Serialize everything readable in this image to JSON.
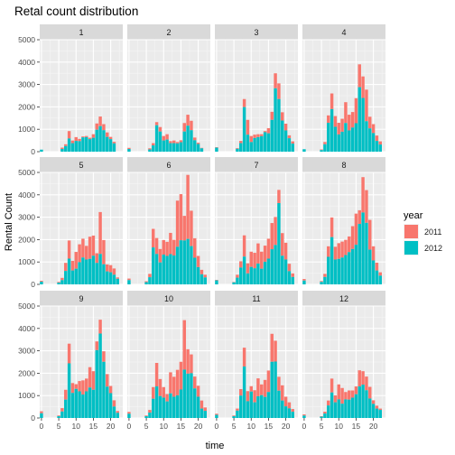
{
  "chart_data": {
    "type": "bar",
    "stacked": true,
    "facet": "month",
    "title": "Retal count distribution",
    "xlabel": "time",
    "ylabel": "Rental Count",
    "ylim": [
      0,
      5000
    ],
    "xlim": [
      -0.5,
      23.5
    ],
    "y_ticks": [
      0,
      1000,
      2000,
      3000,
      4000,
      5000
    ],
    "x_ticks": [
      0,
      5,
      10,
      15,
      20
    ],
    "grid": true,
    "legend": {
      "title": "year",
      "position": "right",
      "items": [
        {
          "label": "2011",
          "color": "#F8766D"
        },
        {
          "label": "2012",
          "color": "#00BFC4"
        }
      ]
    },
    "x": [
      0,
      1,
      2,
      3,
      4,
      5,
      6,
      7,
      8,
      9,
      10,
      11,
      12,
      13,
      14,
      15,
      16,
      17,
      18,
      19,
      20,
      21,
      22,
      23
    ],
    "panels": [
      {
        "label": "1",
        "y2012": [
          90,
          0,
          0,
          0,
          0,
          0,
          120,
          250,
          590,
          380,
          480,
          470,
          640,
          650,
          560,
          620,
          980,
          1140,
          960,
          660,
          560,
          370,
          0,
          0
        ],
        "total": [
          90,
          0,
          0,
          0,
          0,
          0,
          180,
          330,
          920,
          500,
          650,
          570,
          680,
          700,
          620,
          780,
          1260,
          1570,
          1230,
          860,
          660,
          440,
          0,
          0
        ]
      },
      {
        "label": "2",
        "y2012": [
          120,
          0,
          0,
          0,
          0,
          0,
          100,
          280,
          1180,
          900,
          500,
          540,
          380,
          380,
          370,
          420,
          900,
          1160,
          960,
          510,
          340,
          150,
          0,
          0
        ],
        "total": [
          170,
          0,
          0,
          0,
          0,
          0,
          150,
          380,
          1320,
          1100,
          700,
          780,
          470,
          500,
          430,
          510,
          1280,
          1650,
          1380,
          630,
          400,
          170,
          0,
          0
        ]
      },
      {
        "label": "3",
        "y2012": [
          180,
          0,
          0,
          0,
          0,
          0,
          130,
          380,
          1990,
          760,
          430,
          610,
          650,
          690,
          870,
          820,
          1420,
          2830,
          2350,
          1390,
          950,
          600,
          360,
          0
        ],
        "total": [
          200,
          0,
          0,
          0,
          0,
          0,
          160,
          480,
          2350,
          1420,
          700,
          760,
          780,
          780,
          920,
          1050,
          1780,
          3500,
          3050,
          1760,
          1250,
          730,
          460,
          0
        ]
      },
      {
        "label": "4",
        "y2012": [
          110,
          0,
          0,
          0,
          0,
          70,
          330,
          1290,
          1900,
          1110,
          770,
          890,
          1280,
          950,
          1080,
          1270,
          2880,
          2400,
          1360,
          1040,
          830,
          480,
          320,
          0
        ],
        "total": [
          110,
          0,
          0,
          0,
          0,
          100,
          430,
          1620,
          2600,
          1590,
          1290,
          1470,
          2210,
          1650,
          1770,
          2390,
          3900,
          3360,
          2770,
          1560,
          1230,
          720,
          460,
          0
        ]
      }
    ],
    "panels_row2": [
      {
        "label": "5",
        "y2012": [
          120,
          0,
          0,
          0,
          0,
          80,
          190,
          600,
          1150,
          620,
          700,
          990,
          1200,
          1110,
          1140,
          1280,
          960,
          1360,
          900,
          580,
          540,
          430,
          250,
          0
        ],
        "total": [
          160,
          0,
          0,
          0,
          0,
          110,
          290,
          960,
          1960,
          1050,
          1450,
          1790,
          2040,
          1720,
          2130,
          2180,
          1390,
          3230,
          1980,
          890,
          860,
          710,
          310,
          0
        ]
      },
      {
        "label": "6",
        "y2012": [
          190,
          0,
          0,
          0,
          0,
          100,
          320,
          1650,
          1360,
          980,
          1330,
          1270,
          1350,
          1290,
          1680,
          1970,
          1960,
          2030,
          1710,
          1190,
          770,
          450,
          310,
          0
        ],
        "total": [
          260,
          0,
          0,
          0,
          0,
          140,
          470,
          2480,
          2070,
          1580,
          1980,
          1900,
          2300,
          1990,
          3740,
          4030,
          3060,
          4890,
          3290,
          2060,
          1270,
          650,
          430,
          0
        ]
      },
      {
        "label": "7",
        "y2012": [
          180,
          0,
          0,
          0,
          0,
          90,
          300,
          750,
          1240,
          490,
          780,
          720,
          930,
          700,
          1010,
          1150,
          1570,
          1760,
          3630,
          1280,
          1110,
          590,
          330,
          0
        ],
        "total": [
          200,
          0,
          0,
          0,
          0,
          110,
          430,
          1030,
          2190,
          940,
          1460,
          1410,
          1830,
          1460,
          1730,
          2040,
          2740,
          3010,
          4220,
          2290,
          1860,
          920,
          490,
          0
        ]
      },
      {
        "label": "8",
        "y2012": [
          170,
          0,
          0,
          0,
          0,
          110,
          330,
          1230,
          2110,
          1110,
          1140,
          1200,
          1310,
          1440,
          1580,
          1770,
          2700,
          3210,
          2750,
          1550,
          1070,
          620,
          390,
          0
        ],
        "total": [
          240,
          0,
          0,
          0,
          0,
          150,
          470,
          1700,
          2990,
          1680,
          1840,
          1910,
          1990,
          2140,
          2600,
          3160,
          3310,
          4790,
          4210,
          2880,
          1700,
          970,
          540,
          0
        ]
      }
    ],
    "panels_row3": [
      {
        "label": "9",
        "y2012": [
          210,
          0,
          0,
          0,
          0,
          80,
          290,
          820,
          2440,
          1120,
          1300,
          1190,
          1050,
          1190,
          1360,
          1260,
          3030,
          3770,
          2510,
          1400,
          1110,
          510,
          230,
          0
        ],
        "total": [
          300,
          0,
          0,
          0,
          0,
          110,
          440,
          1260,
          3320,
          1560,
          1510,
          1650,
          1680,
          1760,
          2270,
          2090,
          3420,
          4390,
          2980,
          1960,
          1430,
          790,
          310,
          0
        ]
      },
      {
        "label": "10",
        "y2012": [
          190,
          0,
          0,
          0,
          0,
          80,
          240,
          860,
          1410,
          980,
          910,
          740,
          1100,
          950,
          1010,
          1270,
          2160,
          1980,
          2000,
          1320,
          950,
          420,
          320,
          0
        ],
        "total": [
          270,
          0,
          0,
          0,
          0,
          110,
          360,
          1380,
          2460,
          1740,
          1380,
          1070,
          2040,
          1840,
          2150,
          2510,
          4370,
          3070,
          2840,
          1850,
          1440,
          780,
          470,
          0
        ]
      },
      {
        "label": "11",
        "y2012": [
          140,
          0,
          0,
          0,
          0,
          80,
          330,
          1000,
          2300,
          750,
          1180,
          700,
          970,
          1020,
          940,
          1160,
          2510,
          2520,
          1220,
          780,
          520,
          430,
          280,
          0
        ],
        "total": [
          190,
          0,
          0,
          0,
          0,
          110,
          420,
          1290,
          3140,
          1200,
          1420,
          1240,
          1770,
          1500,
          1700,
          2120,
          3760,
          3450,
          1840,
          1460,
          950,
          700,
          400,
          0
        ]
      },
      {
        "label": "12",
        "y2012": [
          110,
          0,
          0,
          0,
          0,
          60,
          200,
          560,
          1140,
          700,
          830,
          640,
          830,
          820,
          910,
          1060,
          1410,
          1490,
          1240,
          870,
          630,
          420,
          360,
          0
        ],
        "total": [
          160,
          0,
          0,
          0,
          0,
          80,
          280,
          780,
          1760,
          1010,
          1500,
          1340,
          1160,
          1230,
          1230,
          1410,
          2130,
          2090,
          1850,
          1390,
          790,
          550,
          420,
          0
        ]
      }
    ]
  }
}
